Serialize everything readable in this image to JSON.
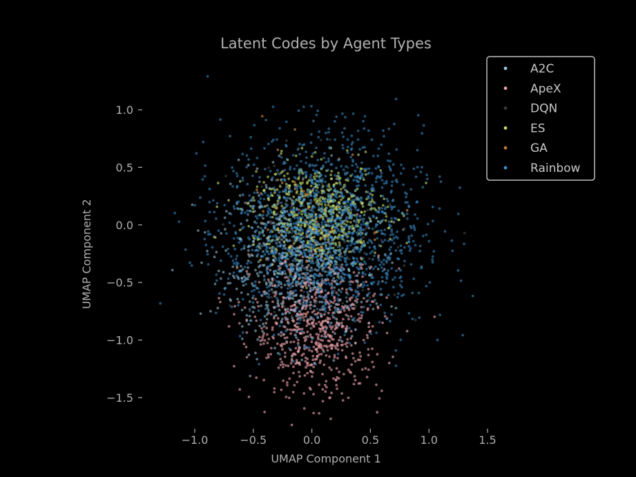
{
  "chart_data": {
    "type": "scatter",
    "title": "Latent Codes by Agent Types",
    "xlabel": "UMAP Component 1",
    "ylabel": "UMAP Component 2",
    "xlim": [
      -1.3,
      1.6
    ],
    "ylim": [
      -1.75,
      1.35
    ],
    "x_ticks": [
      -1.0,
      -0.5,
      0.0,
      0.5,
      1.0,
      1.5
    ],
    "x_tick_labels": [
      "−1.0",
      "−0.5",
      "0.0",
      "0.5",
      "1.0",
      "1.5"
    ],
    "y_ticks": [
      1.0,
      0.5,
      0.0,
      -0.5,
      -1.0,
      -1.5
    ],
    "y_tick_labels": [
      "1.0",
      "0.5",
      "0.0",
      "−0.5",
      "−1.0",
      "−1.5"
    ],
    "grid": false,
    "legend_position": "top-right",
    "series": [
      {
        "name": "A2C",
        "color": "#9ecae1",
        "opacity": 0.55,
        "cluster": {
          "cx": -0.15,
          "cy": -0.35,
          "sx": 0.32,
          "sy": 0.32,
          "n": 700
        }
      },
      {
        "name": "ApeX",
        "color": "#f4a6b0",
        "opacity": 0.6,
        "cluster": {
          "cx": 0.05,
          "cy": -0.9,
          "sx": 0.28,
          "sy": 0.3,
          "n": 650
        }
      },
      {
        "name": "DQN",
        "color": "#3a3a3a",
        "opacity": 0.7,
        "cluster": {
          "cx": 0.05,
          "cy": -0.1,
          "sx": 0.35,
          "sy": 0.35,
          "n": 150
        }
      },
      {
        "name": "ES",
        "color": "#c8e06a",
        "opacity": 0.6,
        "cluster": {
          "cx": 0.05,
          "cy": 0.1,
          "sx": 0.28,
          "sy": 0.22,
          "n": 600
        }
      },
      {
        "name": "GA",
        "color": "#c07a3a",
        "opacity": 0.7,
        "cluster": {
          "cx": 0.05,
          "cy": 0.05,
          "sx": 0.3,
          "sy": 0.3,
          "n": 60
        }
      },
      {
        "name": "Rainbow",
        "color": "#3b8fd0",
        "opacity": 0.55,
        "cluster": {
          "cx": 0.1,
          "cy": -0.05,
          "sx": 0.42,
          "sy": 0.42,
          "n": 1500
        }
      }
    ]
  }
}
